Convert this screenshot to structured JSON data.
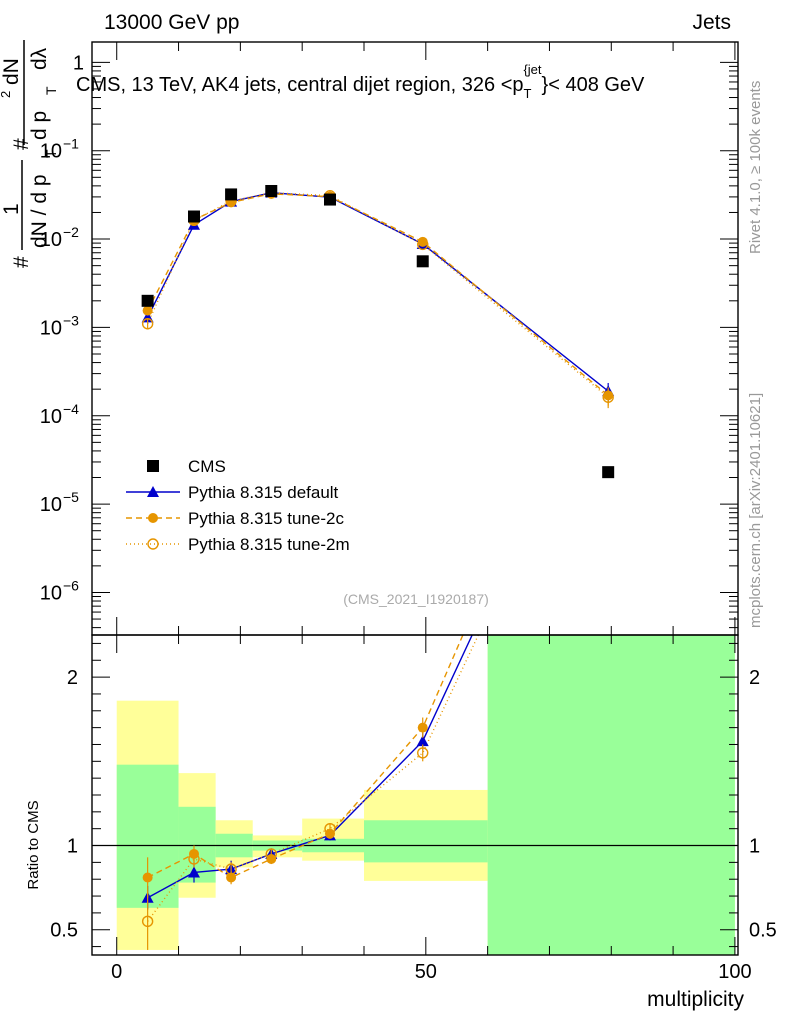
{
  "header": {
    "left": "13000 GeV pp",
    "right": "Jets"
  },
  "side_labels": {
    "rivet": "Rivet 4.1.0, ≥ 100k events",
    "mcplots": "mcplots.cern.ch [arXiv:2401.10621]"
  },
  "chart_data": {
    "type": "scatter",
    "title": "CMS, 13 TeV, AK4 jets, central dijet region, 326 <p_T^{jet}< 408 GeV",
    "title_parts": {
      "pre": "CMS, 13 TeV, AK4 jets, central dijet region, 326 <p",
      "sub": "T",
      "sup": "{jet",
      "post": "}< 408 GeV"
    },
    "watermark": "(CMS_2021_I1920187)",
    "xlabel": "multiplicity",
    "ylabel_parts": {
      "a": "#",
      "b": "1",
      "c": "dN / d p",
      "d": "T",
      "e": "#",
      "f": "dN",
      "g": "d p",
      "h": "T",
      "i": "dλ",
      "j": "d",
      "k": "2"
    },
    "ratio_ylabel": "Ratio to CMS",
    "xlim": [
      -4,
      100.5
    ],
    "ylim_log": [
      3.3e-07,
      1.7
    ],
    "ratio_ylim": [
      0.35,
      2.25
    ],
    "xticks": [
      {
        "v": 0,
        "label": "0"
      },
      {
        "v": 50,
        "label": "50"
      },
      {
        "v": 100,
        "label": "100"
      }
    ],
    "yticks": [
      {
        "v": 1,
        "label": "1"
      },
      {
        "v": 0.1,
        "label": "10",
        "exp": "−1"
      },
      {
        "v": 0.01,
        "label": "10",
        "exp": "−2"
      },
      {
        "v": 0.001,
        "label": "10",
        "exp": "−3"
      },
      {
        "v": 0.0001,
        "label": "10",
        "exp": "−4"
      },
      {
        "v": 1e-05,
        "label": "10",
        "exp": "−5"
      },
      {
        "v": 1e-06,
        "label": "10",
        "exp": "−6"
      }
    ],
    "ratio_yticks": [
      {
        "v": 2,
        "label": "2"
      },
      {
        "v": 1,
        "label": "1"
      },
      {
        "v": 0.5,
        "label": "0.5"
      }
    ],
    "data": {
      "name": "CMS",
      "x": [
        5,
        12.5,
        18.5,
        25,
        34.5,
        49.5,
        79.5
      ],
      "y": [
        0.002,
        0.018,
        0.032,
        0.035,
        0.028,
        0.0056,
        2.3e-05
      ],
      "bins": [
        [
          0,
          10
        ],
        [
          10,
          16
        ],
        [
          16,
          22
        ],
        [
          22,
          30
        ],
        [
          30,
          40
        ],
        [
          40,
          60
        ],
        [
          60,
          100
        ]
      ],
      "ratio_band_green": [
        [
          0.63,
          1.48
        ],
        [
          0.78,
          1.23
        ],
        [
          0.93,
          1.07
        ],
        [
          0.97,
          1.03
        ],
        [
          0.96,
          1.04
        ],
        [
          0.9,
          1.15
        ],
        [
          0.35,
          2.25
        ]
      ],
      "ratio_band_yellow": [
        [
          0.38,
          1.86
        ],
        [
          0.69,
          1.43
        ],
        [
          0.87,
          1.15
        ],
        [
          0.93,
          1.06
        ],
        [
          0.91,
          1.16
        ],
        [
          0.79,
          1.33
        ],
        [
          0.35,
          2.25
        ]
      ]
    },
    "series": [
      {
        "name": "Pythia 8.315 default",
        "color": "#0000cc",
        "marker": "triangle",
        "dash": "",
        "x": [
          5,
          12.5,
          18.5,
          25,
          34.5,
          49.5,
          79.5
        ],
        "y": [
          0.0013,
          0.0145,
          0.0265,
          0.0335,
          0.0298,
          0.0088,
          0.00019
        ],
        "yerr": [
          0.00015,
          0.0006,
          0.0007,
          0.0008,
          0.0007,
          0.0004,
          4.5e-05
        ],
        "ratio_x": [
          5,
          12.5,
          18.5,
          25,
          34.5,
          49.5,
          57.5
        ],
        "ratio": [
          0.69,
          0.84,
          0.86,
          0.95,
          1.06,
          1.62,
          2.25
        ],
        "ratio_err": [
          0.07,
          0.06,
          0.05,
          0.03,
          0.03,
          0.05,
          0
        ]
      },
      {
        "name": "Pythia 8.315 tune-2c",
        "color": "#e69500",
        "marker": "circle",
        "dash": "6,4",
        "x": [
          5,
          12.5,
          18.5,
          25,
          34.5,
          49.5,
          79.5
        ],
        "y": [
          0.00155,
          0.0165,
          0.026,
          0.0325,
          0.0302,
          0.0093,
          0.00017
        ],
        "yerr": [
          0.00015,
          0.0006,
          0.0007,
          0.0008,
          0.0007,
          0.0004,
          4e-05
        ],
        "ratio_x": [
          5,
          12.5,
          18.5,
          25,
          34.5,
          49.5,
          56
        ],
        "ratio": [
          0.81,
          0.95,
          0.81,
          0.92,
          1.07,
          1.7,
          2.25
        ],
        "ratio_err": [
          0.12,
          0.05,
          0.04,
          0.03,
          0.03,
          0.06,
          0
        ]
      },
      {
        "name": "Pythia 8.315 tune-2m",
        "color": "#e69500",
        "marker": "open-circle",
        "dash": "1,3",
        "x": [
          5,
          12.5,
          18.5,
          25,
          34.5,
          49.5,
          79.5
        ],
        "y": [
          0.0011,
          0.0163,
          0.027,
          0.0335,
          0.031,
          0.0087,
          0.000162
        ],
        "yerr": [
          0.00015,
          0.0006,
          0.0007,
          0.0008,
          0.0007,
          0.0004,
          4e-05
        ],
        "ratio_x": [
          5,
          12.5,
          18.5,
          25,
          34.5,
          49.5,
          58.5
        ],
        "ratio": [
          0.55,
          0.92,
          0.86,
          0.95,
          1.1,
          1.55,
          2.25
        ],
        "ratio_err": [
          0.17,
          0.05,
          0.04,
          0.03,
          0.03,
          0.05,
          0
        ]
      }
    ]
  }
}
